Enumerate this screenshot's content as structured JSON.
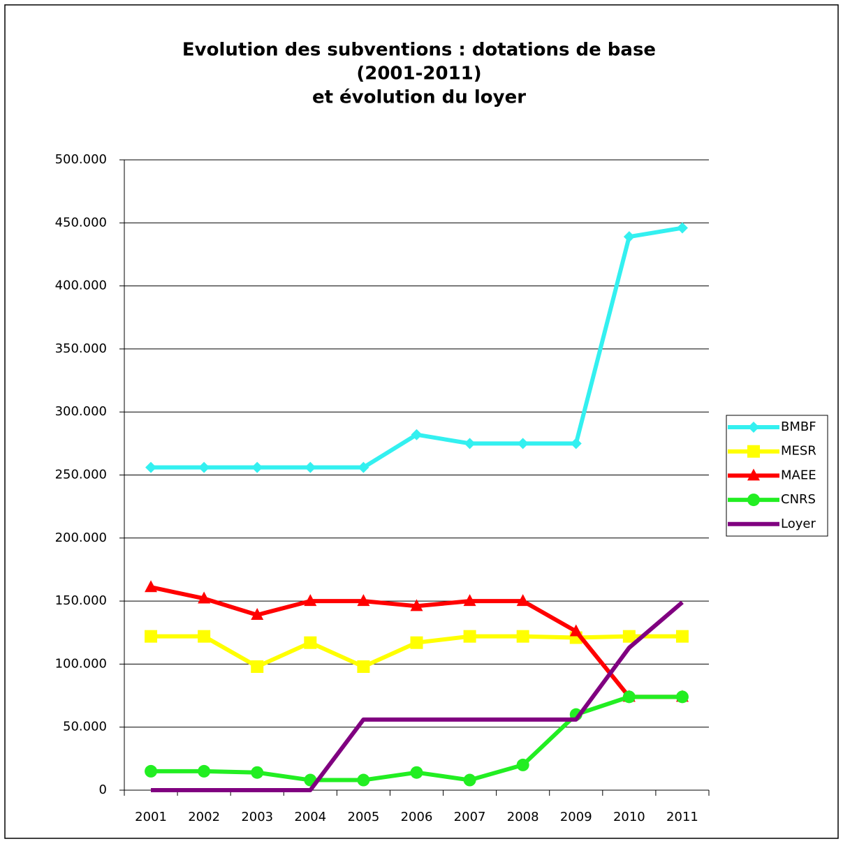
{
  "chart_data": {
    "type": "line",
    "title": [
      "Evolution des subventions : dotations de base",
      "(2001-2011)",
      "et évolution du loyer"
    ],
    "categories": [
      "2001",
      "2002",
      "2003",
      "2004",
      "2005",
      "2006",
      "2007",
      "2008",
      "2009",
      "2010",
      "2011"
    ],
    "series": [
      {
        "name": "BMBF",
        "color": "#33f0f0",
        "marker": "diamond",
        "values": [
          256000,
          256000,
          256000,
          256000,
          256000,
          282000,
          275000,
          275000,
          275000,
          439000,
          446000
        ]
      },
      {
        "name": "MESR",
        "color": "#ffff00",
        "marker": "square",
        "values": [
          122000,
          122000,
          98000,
          117000,
          98000,
          117000,
          122000,
          122000,
          121000,
          122000,
          122000
        ]
      },
      {
        "name": "MAEE",
        "color": "#ff0000",
        "marker": "triangle",
        "values": [
          161000,
          152000,
          139000,
          150000,
          150000,
          146000,
          150000,
          150000,
          126000,
          74000,
          74000
        ]
      },
      {
        "name": "CNRS",
        "color": "#22ee22",
        "marker": "circle",
        "values": [
          15000,
          15000,
          14000,
          8000,
          8000,
          14000,
          8000,
          20000,
          60000,
          74000,
          74000
        ]
      },
      {
        "name": "Loyer",
        "color": "#800080",
        "marker": "none",
        "values": [
          0,
          0,
          0,
          0,
          56000,
          56000,
          56000,
          56000,
          56000,
          113000,
          149000
        ]
      }
    ],
    "ylim": [
      0,
      500000
    ],
    "yticks": [
      0,
      {
        "value": 50000,
        "label": "50.000"
      },
      {
        "value": 100000,
        "label": "100.000"
      },
      {
        "value": 150000,
        "label": "150.000"
      },
      {
        "value": 200000,
        "label": "200.000"
      },
      {
        "value": 250000,
        "label": "250.000"
      },
      {
        "value": 300000,
        "label": "300.000"
      },
      {
        "value": 350000,
        "label": "350.000"
      },
      {
        "value": 400000,
        "label": "400.000"
      },
      {
        "value": 450000,
        "label": "450.000"
      },
      {
        "value": 500000,
        "label": "500.000"
      }
    ],
    "grid": true,
    "legend": "right"
  }
}
